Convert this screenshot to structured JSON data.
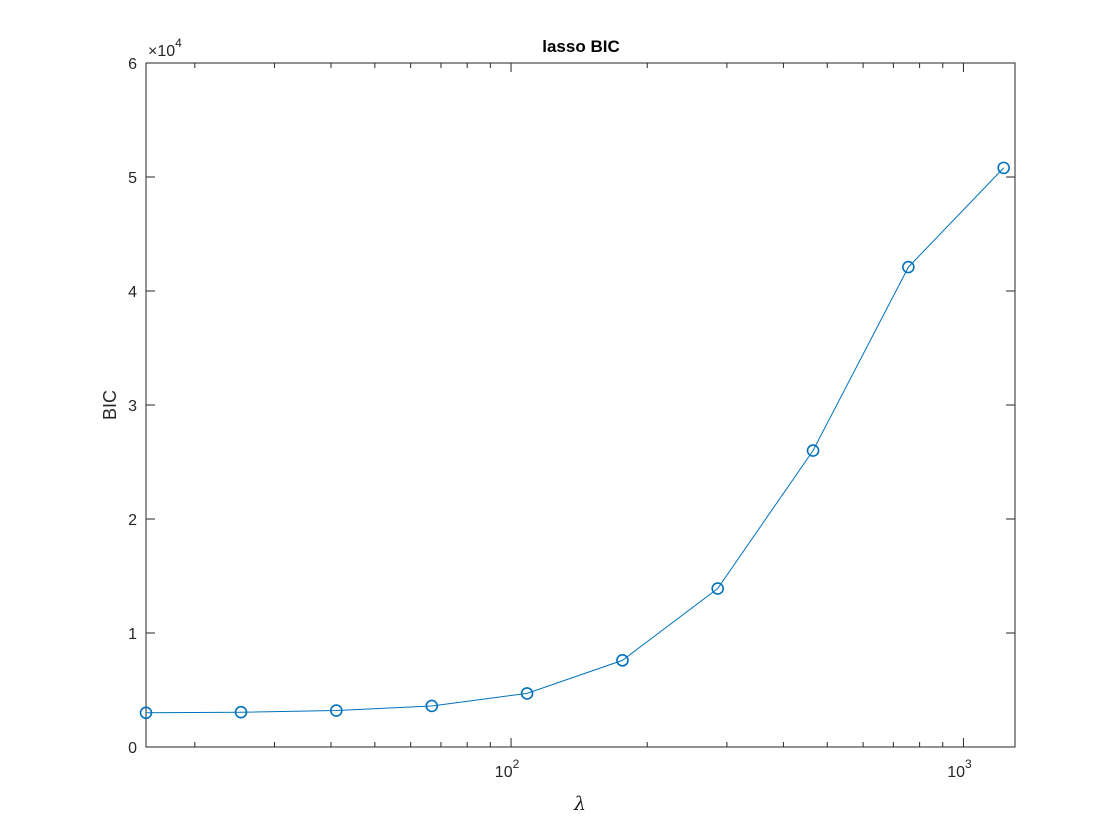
{
  "chart_data": {
    "type": "line",
    "title": "lasso BIC",
    "xlabel": "λ",
    "ylabel": "BIC",
    "xscale": "log",
    "xlim": [
      15.6,
      1300
    ],
    "ylim": [
      0,
      60000
    ],
    "y_exponent_label": "×10",
    "y_exponent_power": "4",
    "x_ticks": [
      {
        "value": 100,
        "base": "10",
        "power": "2"
      },
      {
        "value": 1000,
        "base": "10",
        "power": "3"
      }
    ],
    "y_ticks": [
      {
        "value": 0,
        "label": "0"
      },
      {
        "value": 10000,
        "label": "1"
      },
      {
        "value": 20000,
        "label": "2"
      },
      {
        "value": 30000,
        "label": "3"
      },
      {
        "value": 40000,
        "label": "4"
      },
      {
        "value": 50000,
        "label": "5"
      },
      {
        "value": 60000,
        "label": "6"
      }
    ],
    "grid": false,
    "marker": "circle",
    "line_color": "#0072bd",
    "series": [
      {
        "x": [
          15.6,
          25.3,
          41.1,
          66.8,
          108.5,
          176.3,
          286.3,
          465.1,
          755.5,
          1227.3
        ],
        "y": [
          3000,
          3050,
          3200,
          3600,
          4700,
          7600,
          13900,
          26000,
          42100,
          50800
        ]
      }
    ]
  }
}
